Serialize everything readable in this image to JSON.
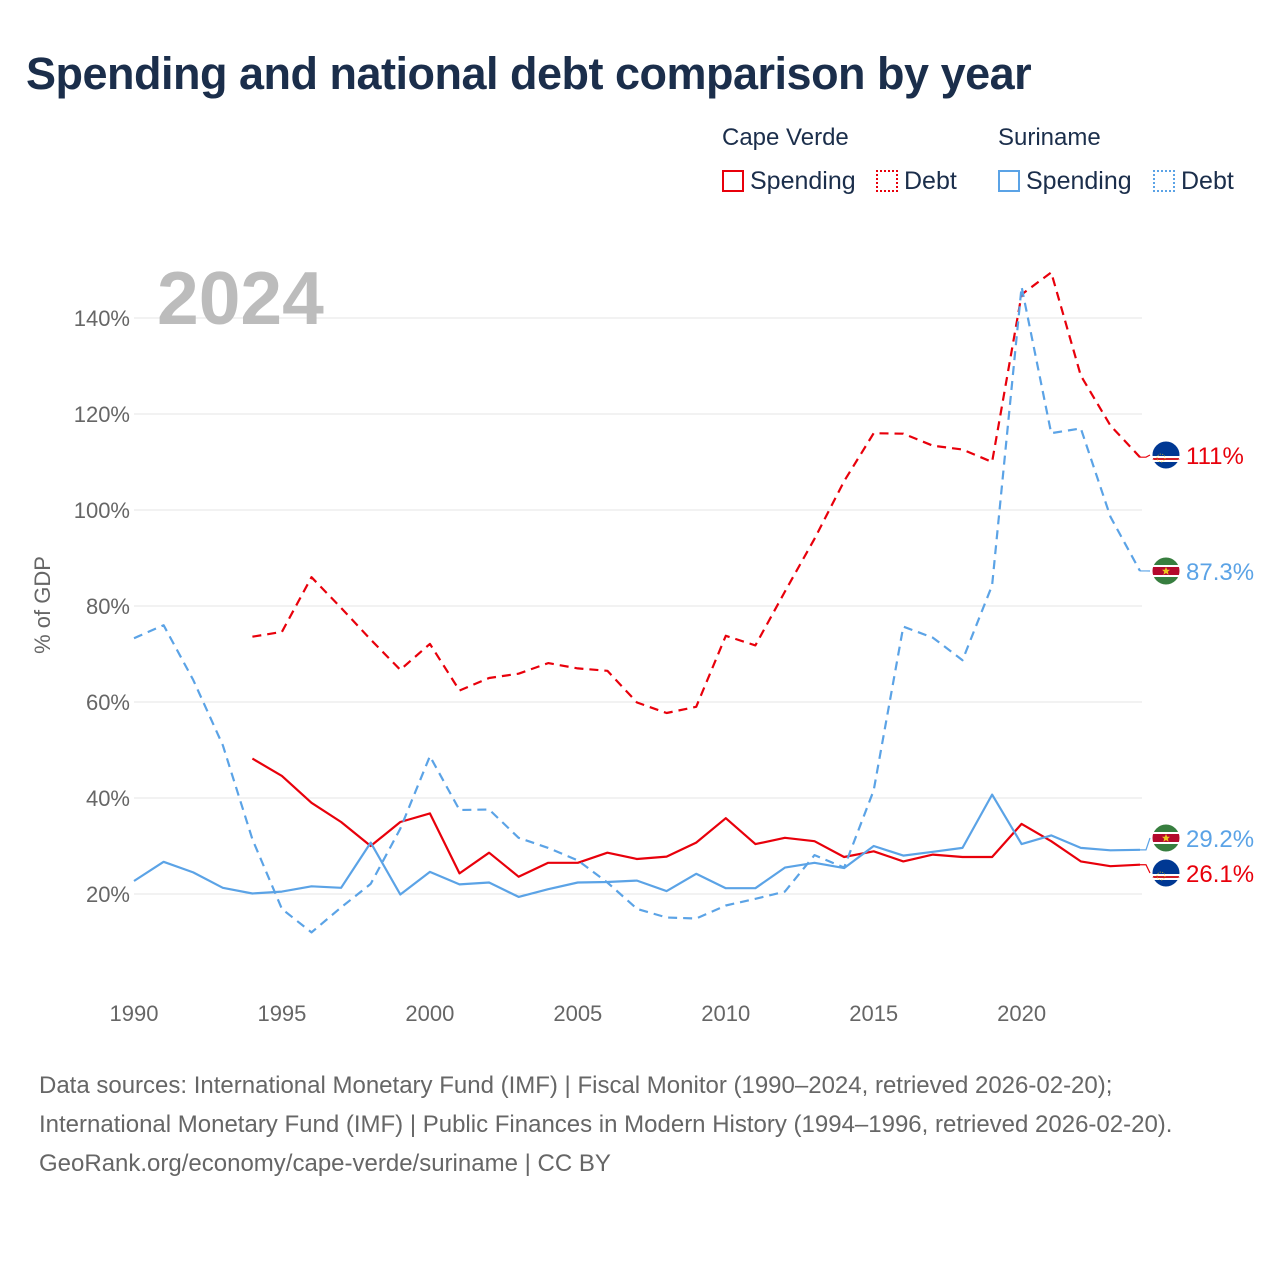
{
  "title": "Spending and national debt comparison by year",
  "legend": {
    "groups": [
      {
        "country": "Cape Verde",
        "color": "#e8000b",
        "items": [
          {
            "label": "Spending",
            "style": "solid"
          },
          {
            "label": "Debt",
            "style": "dotted"
          }
        ]
      },
      {
        "country": "Suriname",
        "color": "#5ba3e6",
        "items": [
          {
            "label": "Spending",
            "style": "solid"
          },
          {
            "label": "Debt",
            "style": "dotted"
          }
        ]
      }
    ]
  },
  "chart_data": {
    "type": "line",
    "year_label": "2024",
    "ylabel": "% of GDP",
    "xlabel": "",
    "xlim": [
      1990,
      2024
    ],
    "ylim": [
      0,
      150
    ],
    "x_ticks": [
      1990,
      1995,
      2000,
      2005,
      2010,
      2015,
      2020
    ],
    "x_tick_labels": [
      "1990",
      "1995",
      "2000",
      "2005",
      "2010",
      "2015",
      "2020"
    ],
    "y_ticks": [
      20,
      40,
      60,
      80,
      100,
      120,
      140
    ],
    "y_tick_labels": [
      "20%",
      "40%",
      "60%",
      "80%",
      "100%",
      "120%",
      "140%"
    ],
    "grid": true,
    "series": [
      {
        "name": "Cape Verde Spending",
        "country": "Cape Verde",
        "kind": "Spending",
        "color": "#e8000b",
        "dashed": false,
        "start_year": 1994,
        "values": [
          48.2,
          44.6,
          39.0,
          35.0,
          30.0,
          35.0,
          36.8,
          24.3,
          28.6,
          23.6,
          26.5,
          26.5,
          28.6,
          27.3,
          27.8,
          30.7,
          35.8,
          30.4,
          31.7,
          31.0,
          27.7,
          28.9,
          26.8,
          28.2,
          27.7,
          27.7,
          34.6,
          31.0,
          26.8,
          25.8,
          26.1
        ],
        "end_label": "26.1%"
      },
      {
        "name": "Cape Verde Debt",
        "country": "Cape Verde",
        "kind": "Debt",
        "color": "#e8000b",
        "dashed": true,
        "start_year": 1994,
        "values": [
          73.6,
          74.6,
          86.0,
          79.6,
          73.0,
          66.7,
          72.1,
          62.4,
          65.0,
          65.9,
          68.1,
          67.0,
          66.5,
          59.9,
          57.7,
          59.0,
          73.8,
          71.8,
          83.0,
          94.0,
          106.0,
          116.0,
          115.9,
          113.4,
          112.6,
          110.0,
          144.9,
          149.5,
          128.0,
          117.6,
          111.0
        ],
        "end_label": "111%"
      },
      {
        "name": "Suriname Spending",
        "country": "Suriname",
        "kind": "Spending",
        "color": "#5ba3e6",
        "dashed": false,
        "start_year": 1990,
        "values": [
          22.7,
          26.7,
          24.5,
          21.3,
          20.1,
          20.5,
          21.6,
          21.3,
          30.7,
          19.9,
          24.6,
          22.0,
          22.4,
          19.4,
          21.0,
          22.4,
          22.5,
          22.8,
          20.6,
          24.2,
          21.2,
          21.2,
          25.5,
          26.5,
          25.4,
          30.0,
          28.0,
          28.8,
          29.6,
          40.7,
          30.4,
          32.2,
          29.6,
          29.1,
          29.2
        ],
        "end_label": "29.2%"
      },
      {
        "name": "Suriname Debt",
        "country": "Suriname",
        "kind": "Debt",
        "color": "#5ba3e6",
        "dashed": true,
        "start_year": 1990,
        "values": [
          73.3,
          76.0,
          64.6,
          51.0,
          31.4,
          16.9,
          12.0,
          17.2,
          22.1,
          33.6,
          48.7,
          37.5,
          37.6,
          31.7,
          29.6,
          27.0,
          22.4,
          16.9,
          15.1,
          14.9,
          17.6,
          19.0,
          20.5,
          28.1,
          25.5,
          41.6,
          75.7,
          73.4,
          68.7,
          84.3,
          146.5,
          116.0,
          117.0,
          98.6,
          87.3
        ],
        "end_label": "87.3%"
      }
    ]
  },
  "footer": {
    "sources": "Data sources: International Monetary Fund (IMF) | Fiscal Monitor (1990–2024, retrieved 2026-02-20); International Monetary Fund (IMF) | Public Finances in Modern History (1994–1996, retrieved 2026-02-20).",
    "credit": "GeoRank.org/economy/cape-verde/suriname | CC BY"
  }
}
